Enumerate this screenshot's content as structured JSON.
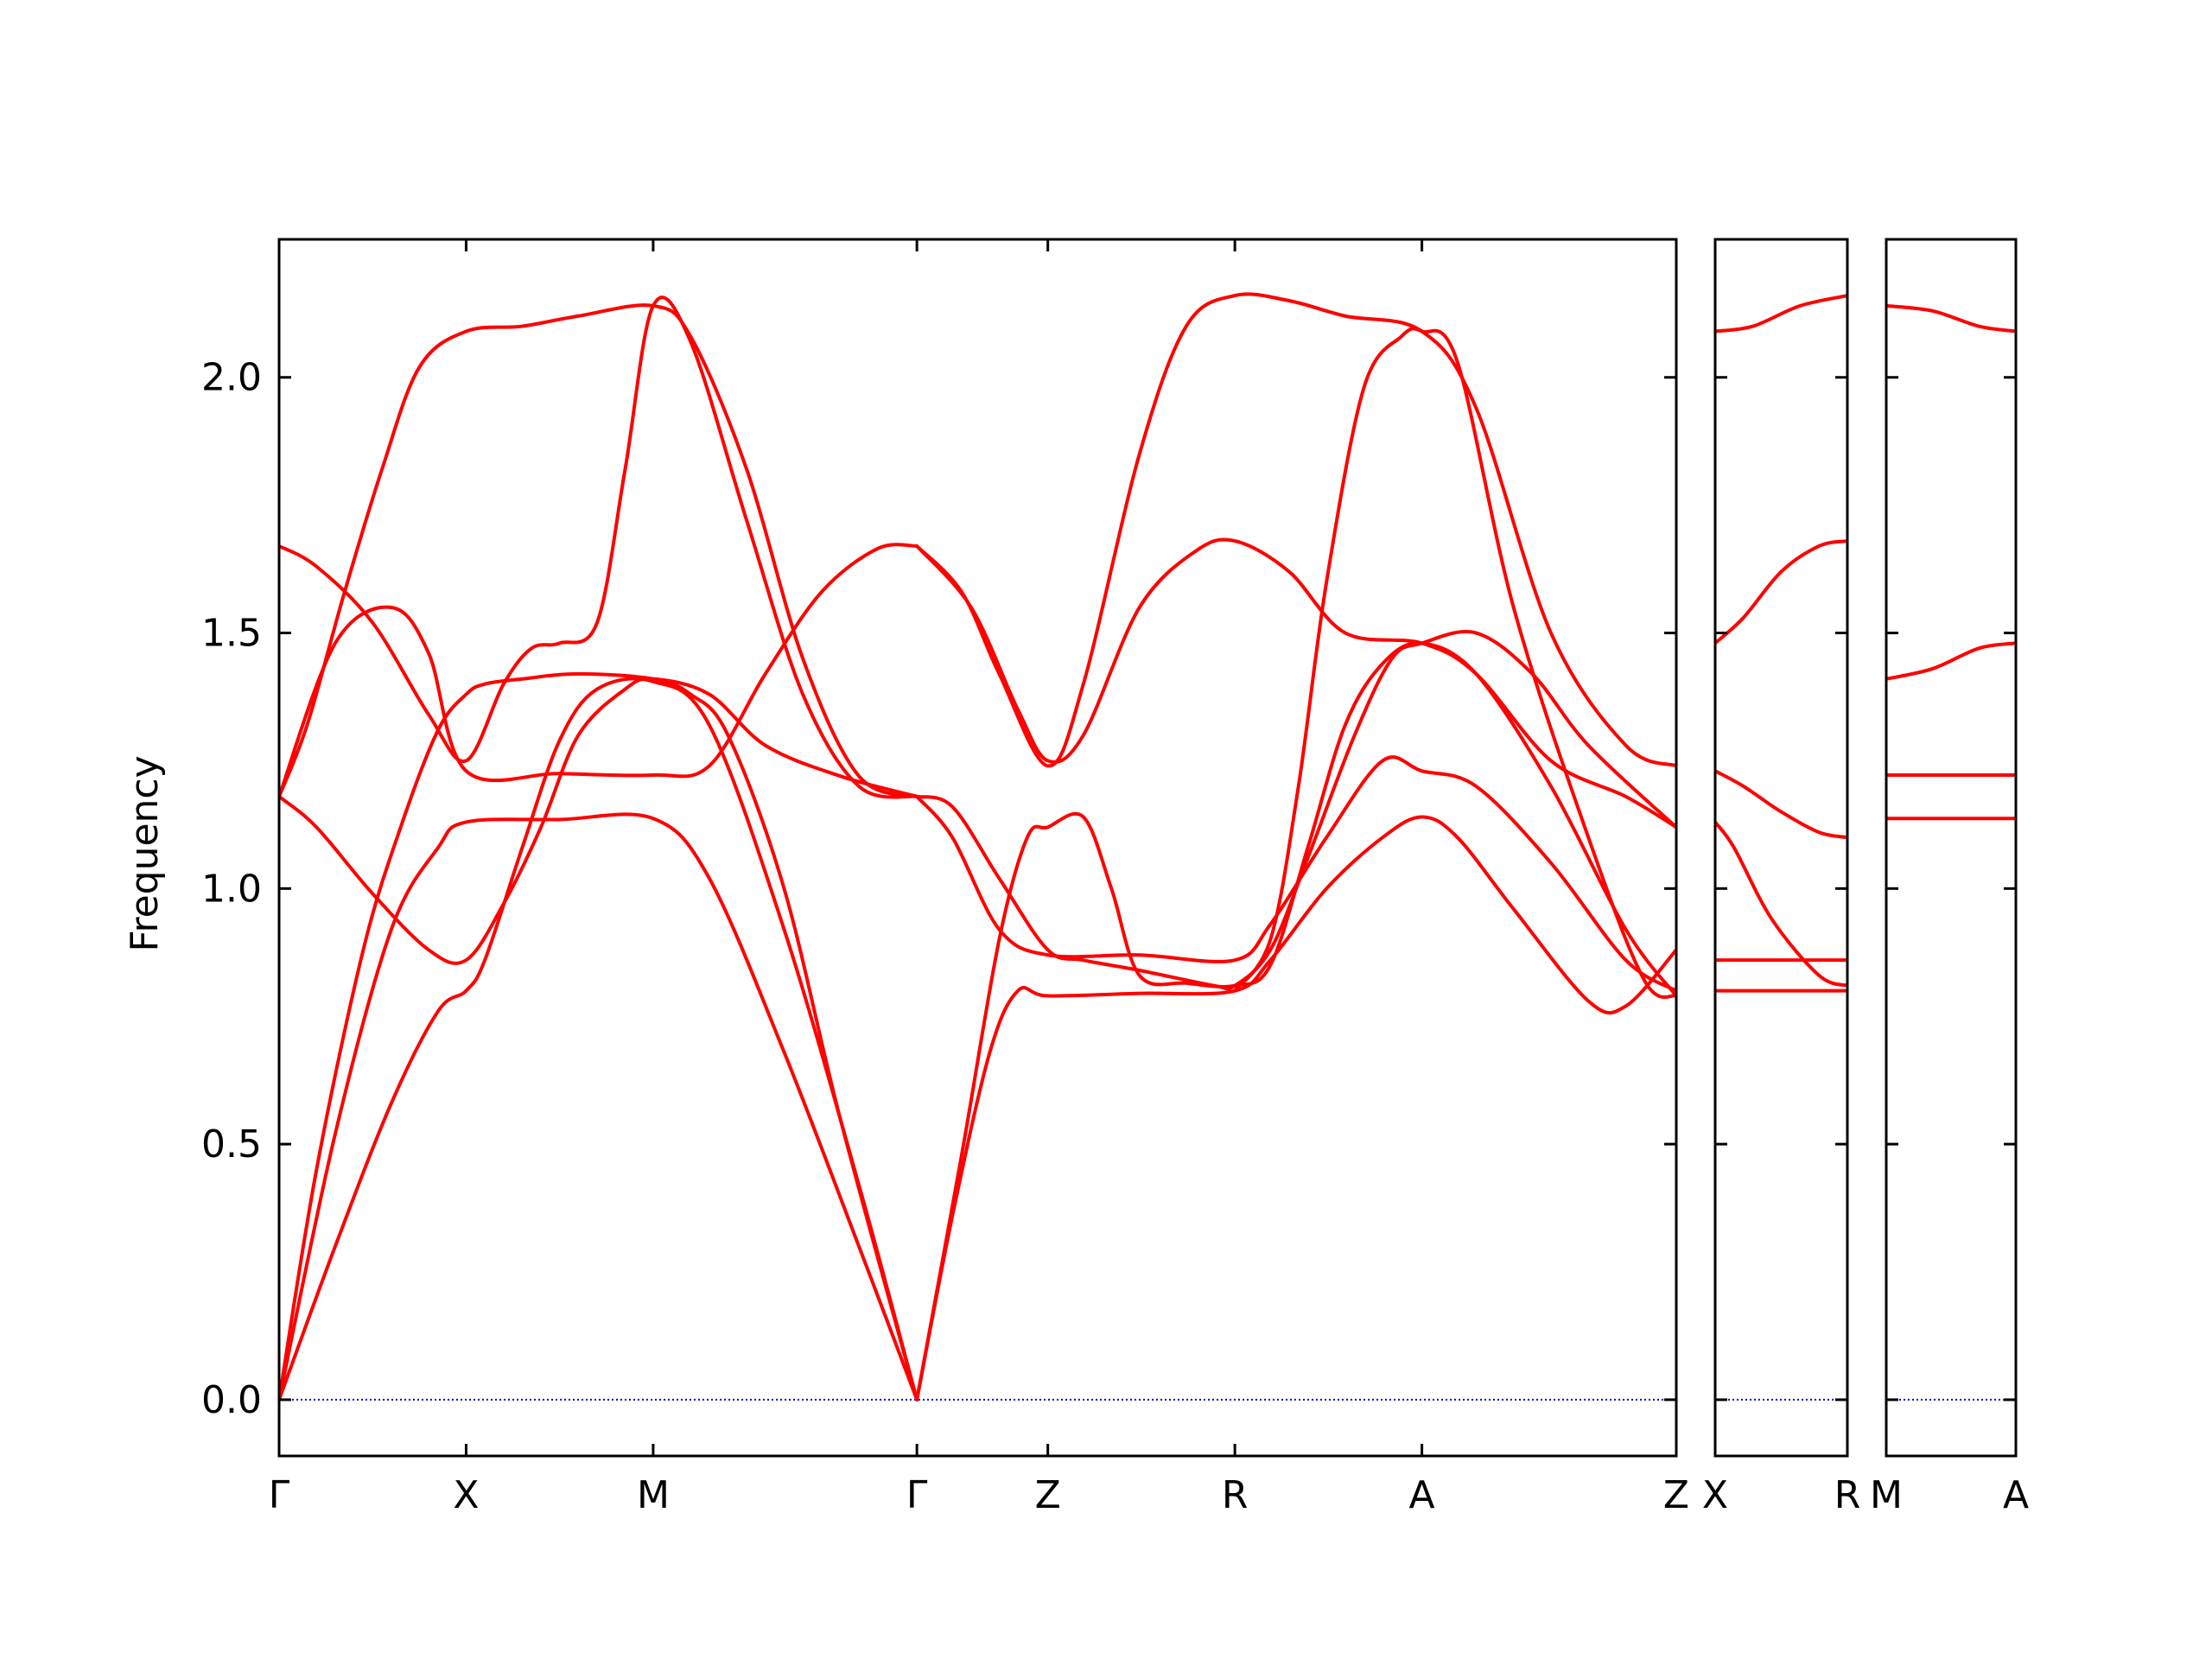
{
  "chart_data": {
    "type": "line",
    "ylabel": "Frequency",
    "ylim": [
      -0.11,
      2.27
    ],
    "yticks": [
      "0.0",
      "0.5",
      "1.0",
      "1.5",
      "2.0"
    ],
    "colors": {
      "bands": "#ff0000",
      "zero_line": "#0000cc",
      "frame": "#000000"
    },
    "panels": [
      {
        "path_length": 7.47,
        "ticks": [
          {
            "x": 0.0,
            "label": "Γ"
          },
          {
            "x": 1.0,
            "label": "X"
          },
          {
            "x": 2.0,
            "label": "M"
          },
          {
            "x": 3.41,
            "label": "Γ"
          },
          {
            "x": 4.11,
            "label": "Z"
          },
          {
            "x": 5.11,
            "label": "R"
          },
          {
            "x": 6.11,
            "label": "A"
          },
          {
            "x": 7.47,
            "label": "Z"
          }
        ],
        "bands": [
          [
            [
              0,
              0
            ],
            [
              0.3,
              0.52
            ],
            [
              0.6,
              0.92
            ],
            [
              0.85,
              1.08
            ],
            [
              1.0,
              1.13
            ],
            [
              1.5,
              1.135
            ],
            [
              2.0,
              1.137
            ],
            [
              2.3,
              1.02
            ],
            [
              2.7,
              0.68
            ],
            [
              3.1,
              0.3
            ],
            [
              3.41,
              0
            ]
          ],
          [
            [
              0,
              0
            ],
            [
              0.3,
              0.3
            ],
            [
              0.6,
              0.58
            ],
            [
              0.85,
              0.76
            ],
            [
              1.0,
              0.8
            ],
            [
              1.1,
              0.86
            ],
            [
              1.3,
              1.08
            ],
            [
              1.5,
              1.29
            ],
            [
              1.7,
              1.39
            ],
            [
              2.0,
              1.405
            ],
            [
              2.3,
              1.32
            ],
            [
              2.7,
              0.92
            ],
            [
              3.1,
              0.42
            ],
            [
              3.41,
              0
            ]
          ],
          [
            [
              0,
              0
            ],
            [
              0.2,
              0.45
            ],
            [
              0.45,
              0.88
            ],
            [
              0.65,
              1.12
            ],
            [
              0.85,
              1.31
            ],
            [
              1.0,
              1.38
            ],
            [
              1.1,
              1.4
            ],
            [
              1.3,
              1.41
            ],
            [
              1.6,
              1.42
            ],
            [
              2.0,
              1.41
            ],
            [
              2.2,
              1.38
            ],
            [
              2.4,
              1.3
            ],
            [
              2.7,
              1.0
            ],
            [
              3.0,
              0.55
            ],
            [
              3.41,
              0
            ]
          ],
          [
            [
              0,
              1.18
            ],
            [
              0.2,
              1.12
            ],
            [
              0.5,
              0.99
            ],
            [
              0.8,
              0.88
            ],
            [
              1.0,
              0.86
            ],
            [
              1.2,
              0.97
            ],
            [
              1.4,
              1.12
            ],
            [
              1.6,
              1.3
            ],
            [
              1.85,
              1.39
            ],
            [
              2.0,
              1.41
            ],
            [
              2.3,
              1.38
            ],
            [
              2.6,
              1.28
            ],
            [
              3.0,
              1.22
            ],
            [
              3.41,
              1.18
            ]
          ],
          [
            [
              0,
              1.18
            ],
            [
              0.3,
              1.48
            ],
            [
              0.6,
              1.55
            ],
            [
              0.8,
              1.46
            ],
            [
              1.0,
              1.23
            ],
            [
              1.5,
              1.225
            ],
            [
              2.0,
              1.222
            ],
            [
              2.3,
              1.24
            ],
            [
              2.6,
              1.42
            ],
            [
              2.9,
              1.58
            ],
            [
              3.2,
              1.665
            ],
            [
              3.41,
              1.67
            ]
          ],
          [
            [
              0,
              1.67
            ],
            [
              0.2,
              1.63
            ],
            [
              0.5,
              1.52
            ],
            [
              0.8,
              1.34
            ],
            [
              1.0,
              1.25
            ],
            [
              1.2,
              1.4
            ],
            [
              1.35,
              1.47
            ],
            [
              1.5,
              1.48
            ],
            [
              1.7,
              1.52
            ],
            [
              1.85,
              1.82
            ],
            [
              2.0,
              2.14
            ],
            [
              2.2,
              2.07
            ],
            [
              2.5,
              1.72
            ],
            [
              2.8,
              1.38
            ],
            [
              3.1,
              1.2
            ],
            [
              3.41,
              1.18
            ]
          ],
          [
            [
              0,
              1.18
            ],
            [
              0.15,
              1.32
            ],
            [
              0.35,
              1.58
            ],
            [
              0.55,
              1.82
            ],
            [
              0.75,
              2.02
            ],
            [
              1.0,
              2.09
            ],
            [
              1.3,
              2.1
            ],
            [
              1.6,
              2.12
            ],
            [
              2.0,
              2.14
            ],
            [
              2.2,
              2.08
            ],
            [
              2.5,
              1.82
            ],
            [
              2.8,
              1.45
            ],
            [
              3.1,
              1.22
            ],
            [
              3.41,
              1.18
            ]
          ],
          [
            [
              3.41,
              0
            ],
            [
              3.6,
              0.36
            ],
            [
              3.8,
              0.68
            ],
            [
              3.95,
              0.8
            ],
            [
              4.11,
              0.79
            ],
            [
              4.6,
              0.795
            ],
            [
              5.11,
              0.8
            ],
            [
              5.3,
              0.86
            ],
            [
              5.6,
              1.0
            ],
            [
              5.9,
              1.1
            ],
            [
              6.11,
              1.14
            ],
            [
              6.3,
              1.1
            ],
            [
              6.6,
              0.96
            ],
            [
              7.0,
              0.78
            ],
            [
              7.2,
              0.77
            ],
            [
              7.47,
              0.88
            ]
          ],
          [
            [
              3.41,
              0
            ],
            [
              3.65,
              0.48
            ],
            [
              3.85,
              0.9
            ],
            [
              4.0,
              1.1
            ],
            [
              4.11,
              1.12
            ],
            [
              4.3,
              1.14
            ],
            [
              4.45,
              1.0
            ],
            [
              4.6,
              0.83
            ],
            [
              4.85,
              0.815
            ],
            [
              5.11,
              0.81
            ],
            [
              5.3,
              0.85
            ],
            [
              5.5,
              1.08
            ],
            [
              5.7,
              1.32
            ],
            [
              5.9,
              1.44
            ],
            [
              6.11,
              1.48
            ],
            [
              6.4,
              1.42
            ],
            [
              6.8,
              1.2
            ],
            [
              7.2,
              0.92
            ],
            [
              7.47,
              0.79
            ]
          ],
          [
            [
              3.41,
              1.18
            ],
            [
              3.6,
              1.1
            ],
            [
              3.85,
              0.92
            ],
            [
              4.11,
              0.87
            ],
            [
              4.6,
              0.87
            ],
            [
              5.11,
              0.86
            ],
            [
              5.3,
              0.93
            ],
            [
              5.6,
              1.1
            ],
            [
              5.9,
              1.25
            ],
            [
              6.11,
              1.23
            ],
            [
              6.4,
              1.2
            ],
            [
              6.8,
              1.05
            ],
            [
              7.2,
              0.86
            ],
            [
              7.47,
              0.8
            ]
          ],
          [
            [
              3.41,
              1.18
            ],
            [
              3.6,
              1.16
            ],
            [
              3.85,
              1.02
            ],
            [
              4.11,
              0.88
            ],
            [
              4.3,
              0.86
            ],
            [
              4.6,
              0.84
            ],
            [
              5.0,
              0.81
            ],
            [
              5.11,
              0.81
            ],
            [
              5.3,
              0.88
            ],
            [
              5.5,
              1.06
            ],
            [
              5.75,
              1.3
            ],
            [
              5.95,
              1.45
            ],
            [
              6.11,
              1.48
            ],
            [
              6.4,
              1.5
            ],
            [
              6.7,
              1.42
            ],
            [
              7.0,
              1.28
            ],
            [
              7.47,
              1.12
            ]
          ],
          [
            [
              3.41,
              1.67
            ],
            [
              3.7,
              1.55
            ],
            [
              3.95,
              1.35
            ],
            [
              4.11,
              1.25
            ],
            [
              4.3,
              1.3
            ],
            [
              4.6,
              1.55
            ],
            [
              4.9,
              1.66
            ],
            [
              5.11,
              1.68
            ],
            [
              5.4,
              1.62
            ],
            [
              5.7,
              1.5
            ],
            [
              6.11,
              1.48
            ],
            [
              6.4,
              1.42
            ],
            [
              6.8,
              1.25
            ],
            [
              7.2,
              1.18
            ],
            [
              7.47,
              1.12
            ]
          ],
          [
            [
              3.41,
              1.67
            ],
            [
              3.65,
              1.58
            ],
            [
              3.85,
              1.42
            ],
            [
              4.11,
              1.24
            ],
            [
              4.3,
              1.4
            ],
            [
              4.6,
              1.85
            ],
            [
              4.85,
              2.1
            ],
            [
              5.11,
              2.16
            ],
            [
              5.4,
              2.15
            ],
            [
              5.7,
              2.12
            ],
            [
              6.11,
              2.09
            ],
            [
              6.4,
              1.94
            ],
            [
              6.8,
              1.5
            ],
            [
              7.2,
              1.28
            ],
            [
              7.47,
              1.24
            ]
          ],
          [
            [
              5.11,
              0.8
            ],
            [
              5.3,
              0.9
            ],
            [
              5.45,
              1.2
            ],
            [
              5.6,
              1.6
            ],
            [
              5.8,
              1.98
            ],
            [
              6.0,
              2.08
            ],
            [
              6.11,
              2.09
            ],
            [
              6.3,
              2.03
            ],
            [
              6.6,
              1.55
            ],
            [
              7.0,
              1.1
            ],
            [
              7.3,
              0.82
            ],
            [
              7.47,
              0.79
            ]
          ]
        ]
      },
      {
        "path_length": 0.7,
        "ticks": [
          {
            "x": 0.0,
            "label": "X"
          },
          {
            "x": 0.7,
            "label": "R"
          }
        ],
        "bands": [
          [
            [
              0,
              0.8
            ],
            [
              0.7,
              0.8
            ]
          ],
          [
            [
              0,
              0.86
            ],
            [
              0.7,
              0.86
            ]
          ],
          [
            [
              0,
              1.13
            ],
            [
              0.1,
              1.08
            ],
            [
              0.3,
              0.94
            ],
            [
              0.55,
              0.83
            ],
            [
              0.7,
              0.81
            ]
          ],
          [
            [
              0,
              1.23
            ],
            [
              0.15,
              1.2
            ],
            [
              0.35,
              1.15
            ],
            [
              0.55,
              1.11
            ],
            [
              0.7,
              1.1
            ]
          ],
          [
            [
              0,
              1.48
            ],
            [
              0.15,
              1.53
            ],
            [
              0.35,
              1.62
            ],
            [
              0.55,
              1.67
            ],
            [
              0.7,
              1.68
            ]
          ],
          [
            [
              0,
              2.09
            ],
            [
              0.2,
              2.1
            ],
            [
              0.45,
              2.14
            ],
            [
              0.7,
              2.16
            ]
          ]
        ]
      },
      {
        "path_length": 0.7,
        "ticks": [
          {
            "x": 0.0,
            "label": "M"
          },
          {
            "x": 0.7,
            "label": "A"
          }
        ],
        "bands": [
          [
            [
              0,
              1.137
            ],
            [
              0.7,
              1.137
            ]
          ],
          [
            [
              0,
              1.222
            ],
            [
              0.7,
              1.222
            ]
          ],
          [
            [
              0,
              1.41
            ],
            [
              0.25,
              1.43
            ],
            [
              0.5,
              1.47
            ],
            [
              0.7,
              1.48
            ]
          ],
          [
            [
              0,
              2.14
            ],
            [
              0.25,
              2.13
            ],
            [
              0.5,
              2.1
            ],
            [
              0.7,
              2.09
            ]
          ]
        ]
      }
    ]
  }
}
